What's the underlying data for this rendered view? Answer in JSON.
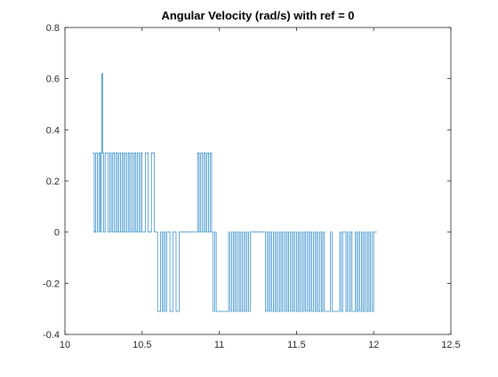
{
  "chart_data": {
    "type": "line",
    "title": "Angular Velocity (rad/s) with ref = 0",
    "xlabel": "",
    "ylabel": "",
    "xlim": [
      10,
      12.5
    ],
    "ylim": [
      -0.4,
      0.8
    ],
    "xticks": [
      "10",
      "10.5",
      "11",
      "11.5",
      "12",
      "12.5"
    ],
    "yticks": [
      "-0.4",
      "-0.2",
      "0",
      "0.2",
      "0.4",
      "0.6",
      "0.8"
    ],
    "grid": false,
    "legend": "none",
    "series": [
      {
        "color": "#0072bd",
        "x": [
          10.18,
          10.19,
          10.19,
          10.2,
          10.2,
          10.21,
          10.21,
          10.22,
          10.22,
          10.23,
          10.23,
          10.235,
          10.235,
          10.24,
          10.24,
          10.245,
          10.245,
          10.25,
          10.25,
          10.26,
          10.26,
          10.28,
          10.28,
          10.29,
          10.29,
          10.3,
          10.3,
          10.31,
          10.31,
          10.32,
          10.32,
          10.33,
          10.33,
          10.34,
          10.34,
          10.35,
          10.35,
          10.36,
          10.36,
          10.37,
          10.37,
          10.38,
          10.38,
          10.39,
          10.39,
          10.4,
          10.4,
          10.41,
          10.41,
          10.42,
          10.42,
          10.43,
          10.43,
          10.44,
          10.44,
          10.45,
          10.45,
          10.46,
          10.46,
          10.47,
          10.47,
          10.48,
          10.48,
          10.49,
          10.49,
          10.5,
          10.5,
          10.52,
          10.52,
          10.54,
          10.54,
          10.56,
          10.56,
          10.58,
          10.58,
          10.6,
          10.6,
          10.62,
          10.62,
          10.63,
          10.63,
          10.64,
          10.64,
          10.65,
          10.65,
          10.66,
          10.66,
          10.68,
          10.68,
          10.7,
          10.7,
          10.72,
          10.72,
          10.74,
          10.74,
          10.86,
          10.86,
          10.87,
          10.87,
          10.88,
          10.88,
          10.89,
          10.89,
          10.9,
          10.9,
          10.91,
          10.91,
          10.92,
          10.92,
          10.93,
          10.93,
          10.94,
          10.94,
          10.95,
          10.95,
          10.96,
          10.96,
          10.97,
          10.97,
          10.98,
          10.98,
          11.06,
          11.06,
          11.07,
          11.07,
          11.08,
          11.08,
          11.09,
          11.09,
          11.1,
          11.1,
          11.11,
          11.11,
          11.12,
          11.12,
          11.13,
          11.13,
          11.14,
          11.14,
          11.15,
          11.15,
          11.16,
          11.16,
          11.17,
          11.17,
          11.18,
          11.18,
          11.19,
          11.19,
          11.2,
          11.2,
          11.3,
          11.3,
          11.31,
          11.31,
          11.32,
          11.32,
          11.33,
          11.33,
          11.34,
          11.34,
          11.35,
          11.35,
          11.36,
          11.36,
          11.37,
          11.37,
          11.38,
          11.38,
          11.39,
          11.39,
          11.4,
          11.4,
          11.41,
          11.41,
          11.42,
          11.42,
          11.43,
          11.43,
          11.44,
          11.44,
          11.45,
          11.45,
          11.46,
          11.46,
          11.47,
          11.47,
          11.48,
          11.48,
          11.49,
          11.49,
          11.5,
          11.5,
          11.51,
          11.51,
          11.52,
          11.52,
          11.53,
          11.53,
          11.54,
          11.54,
          11.55,
          11.55,
          11.56,
          11.56,
          11.57,
          11.57,
          11.58,
          11.58,
          11.59,
          11.59,
          11.6,
          11.6,
          11.61,
          11.61,
          11.62,
          11.62,
          11.63,
          11.63,
          11.64,
          11.64,
          11.65,
          11.65,
          11.66,
          11.66,
          11.67,
          11.67,
          11.68,
          11.68,
          11.72,
          11.72,
          11.73,
          11.73,
          11.78,
          11.78,
          11.79,
          11.79,
          11.8,
          11.8,
          11.82,
          11.82,
          11.83,
          11.83,
          11.84,
          11.84,
          11.85,
          11.85,
          11.86,
          11.86,
          11.88,
          11.88,
          11.89,
          11.89,
          11.9,
          11.9,
          11.91,
          11.91,
          11.92,
          11.92,
          11.93,
          11.93,
          11.94,
          11.94,
          11.95,
          11.95,
          11.96,
          11.96,
          11.97,
          11.97,
          11.98,
          11.98,
          11.99,
          11.99,
          12.0,
          12.0,
          12.02
        ],
        "y": [
          0.31,
          0.31,
          0.0,
          0.0,
          0.31,
          0.31,
          0.0,
          0.0,
          0.31,
          0.31,
          0.0,
          0.0,
          0.31,
          0.31,
          0.62,
          0.62,
          0.31,
          0.31,
          0.0,
          0.0,
          0.31,
          0.31,
          0.0,
          0.0,
          0.31,
          0.31,
          0.0,
          0.0,
          0.31,
          0.31,
          0.0,
          0.0,
          0.31,
          0.31,
          0.0,
          0.0,
          0.31,
          0.31,
          0.0,
          0.0,
          0.31,
          0.31,
          0.0,
          0.0,
          0.31,
          0.31,
          0.0,
          0.0,
          0.31,
          0.31,
          0.0,
          0.0,
          0.31,
          0.31,
          0.0,
          0.0,
          0.31,
          0.31,
          0.0,
          0.0,
          0.31,
          0.31,
          0.0,
          0.0,
          0.31,
          0.31,
          0.0,
          0.0,
          0.31,
          0.31,
          0.0,
          0.0,
          0.31,
          0.31,
          0.0,
          0.0,
          -0.31,
          -0.31,
          0.0,
          0.0,
          -0.31,
          -0.31,
          0.0,
          0.0,
          -0.31,
          -0.31,
          0.0,
          0.0,
          -0.31,
          -0.31,
          0.0,
          0.0,
          -0.31,
          -0.31,
          0.0,
          0.0,
          0.31,
          0.31,
          0.0,
          0.0,
          0.31,
          0.31,
          0.0,
          0.0,
          0.31,
          0.31,
          0.0,
          0.0,
          0.31,
          0.31,
          0.0,
          0.0,
          0.31,
          0.31,
          0.0,
          0.0,
          -0.31,
          -0.31,
          0.0,
          0.0,
          -0.31,
          -0.31,
          0.0,
          0.0,
          -0.31,
          -0.31,
          0.0,
          0.0,
          -0.31,
          -0.31,
          0.0,
          0.0,
          -0.31,
          -0.31,
          0.0,
          0.0,
          -0.31,
          -0.31,
          0.0,
          0.0,
          -0.31,
          -0.31,
          0.0,
          0.0,
          -0.31,
          -0.31,
          0.0,
          0.0,
          -0.31,
          -0.31,
          0.0,
          0.0,
          -0.31,
          -0.31,
          0.0,
          0.0,
          -0.31,
          -0.31,
          0.0,
          0.0,
          -0.31,
          -0.31,
          0.0,
          0.0,
          -0.31,
          -0.31,
          0.0,
          0.0,
          -0.31,
          -0.31,
          0.0,
          0.0,
          -0.31,
          -0.31,
          0.0,
          0.0,
          -0.31,
          -0.31,
          0.0,
          0.0,
          -0.31,
          -0.31,
          0.0,
          0.0,
          -0.31,
          -0.31,
          0.0,
          0.0,
          -0.31,
          -0.31,
          0.0,
          0.0,
          -0.31,
          -0.31,
          0.0,
          0.0,
          -0.31,
          -0.31,
          0.0,
          0.0,
          -0.31,
          -0.31,
          0.0,
          0.0,
          -0.31,
          -0.31,
          0.0,
          0.0,
          -0.31,
          -0.31,
          0.0,
          0.0,
          -0.31,
          -0.31,
          0.0,
          0.0,
          -0.31,
          -0.31,
          0.0,
          0.0,
          -0.31,
          -0.31,
          0.0,
          0.0,
          -0.31,
          -0.31,
          0.0,
          0.0,
          -0.31,
          -0.31,
          0.0,
          0.0,
          -0.31,
          -0.31,
          0.0,
          0.0,
          -0.31,
          -0.31,
          0.0,
          0.0,
          -0.31,
          -0.31,
          0.0,
          0.0,
          -0.31,
          -0.31,
          0.0,
          0.0,
          -0.31,
          -0.31,
          0.0,
          0.0,
          -0.31,
          -0.31,
          0.0,
          0.0,
          -0.31,
          -0.31,
          0.0,
          0.0,
          -0.31,
          -0.31,
          0.0,
          0.0,
          -0.31,
          -0.31,
          0.0,
          0.0,
          -0.31,
          -0.31,
          0.0,
          0.0,
          -0.31,
          -0.31,
          0.0,
          0.0
        ]
      }
    ]
  }
}
